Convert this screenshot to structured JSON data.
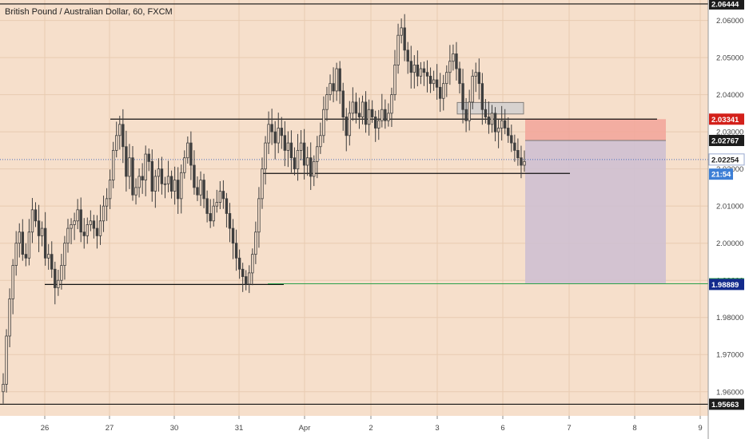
{
  "title": "British Pound / Australian Dollar, 60, FXCM",
  "colors": {
    "background": "#f6dfcb",
    "candle": "#3e3e3e",
    "grid": "#e8cbb1",
    "level_line": "#111111",
    "green_line": "#2aa14a",
    "stop_zone": "#f2a59a",
    "target_zone": "#cfc0d2",
    "price_axis_bg": "#ffffff",
    "badge_red": "#d3201a",
    "badge_black": "#1c1c1c",
    "badge_green": "#2aa14a",
    "badge_navy": "#132a8c",
    "badge_blue": "#3d7fd6"
  },
  "chart_data": {
    "type": "candlestick",
    "symbol": "British Pound / Australian Dollar",
    "interval": "60",
    "source": "FXCM",
    "x_labels": [
      "26",
      "27",
      "30",
      "31",
      "Apr",
      "2",
      "3",
      "6",
      "7",
      "8",
      "9"
    ],
    "y_ticks": [
      "2.06000",
      "2.05000",
      "2.04000",
      "2.03000",
      "2.02000",
      "2.01000",
      "2.00000",
      "1.99000",
      "1.98000",
      "1.97000",
      "1.96000"
    ],
    "y_range": [
      1.9535,
      2.0655
    ],
    "price_badges": [
      {
        "label": "2.06444",
        "value": 2.06444,
        "style": "black"
      },
      {
        "label": "2.03341",
        "value": 2.03341,
        "style": "red"
      },
      {
        "label": "2.02767",
        "value": 2.02767,
        "style": "black"
      },
      {
        "label": "2.02254",
        "value": 2.02254,
        "style": "white"
      },
      {
        "label": "21:54",
        "value": 2.0186,
        "style": "blue"
      },
      {
        "label": "1.98908",
        "value": 1.98908,
        "style": "green"
      },
      {
        "label": "1.98889",
        "value": 1.98889,
        "style": "navy"
      },
      {
        "label": "1.95663",
        "value": 1.95663,
        "style": "black"
      }
    ],
    "horizontal_levels": [
      2.03341,
      2.0188,
      1.98889
    ],
    "position": {
      "type": "short",
      "entry": 2.02767,
      "stop": 2.03341,
      "target": 1.98908,
      "current": 2.02254
    },
    "candles_close_path": [
      [
        1.962,
        1.975,
        1.985,
        1.994,
        2.0,
        2.003,
        1.997,
        1.996,
        2.003,
        2.009,
        2.006,
        2.002,
        2.004,
        1.996,
        1.997,
        1.993,
        1.988,
        1.99,
        1.994,
        2.0,
        2.004,
        2.005,
        2.006,
        2.009,
        2.003,
        2.002,
        2.005,
        2.006,
        2.004,
        2.002,
        2.006,
        2.01,
        2.012,
        2.017,
        2.025,
        2.029,
        2.032,
        2.026,
        2.018,
        2.023,
        2.013,
        2.015,
        2.018,
        2.017,
        2.024,
        2.022,
        2.014,
        2.018,
        2.02,
        2.016,
        2.016,
        2.018,
        2.014,
        2.017,
        2.012,
        2.019,
        2.023,
        2.027,
        2.021,
        2.015,
        2.013,
        2.017,
        2.012,
        2.008,
        2.006,
        2.01,
        2.011,
        2.014,
        2.012,
        2.008,
        2.004,
        2.0,
        1.996,
        1.993,
        1.991,
        1.989,
        1.992,
        1.997,
        2.003,
        2.012,
        2.02,
        2.027,
        2.032,
        2.03,
        2.027,
        2.031,
        2.029,
        2.025,
        2.027,
        2.023,
        2.02,
        2.025,
        2.027,
        2.021,
        2.023,
        2.018,
        2.022,
        2.026,
        2.029,
        2.036,
        2.04,
        2.043,
        2.041,
        2.047,
        2.041,
        2.034,
        2.029,
        2.035,
        2.038,
        2.035,
        2.034,
        2.038,
        2.032,
        2.036,
        2.034,
        2.031,
        2.033,
        2.036,
        2.033,
        2.035,
        2.04,
        2.048,
        2.056,
        2.058,
        2.052,
        2.049,
        2.046,
        2.048,
        2.045,
        2.047,
        2.046,
        2.045,
        2.043,
        2.044,
        2.042,
        2.039,
        2.043,
        2.046,
        2.049,
        2.051,
        2.047,
        2.043,
        2.036,
        2.033,
        2.038,
        2.045,
        2.046,
        2.043,
        2.036,
        2.034,
        2.032,
        2.035,
        2.03,
        2.031,
        2.033,
        2.031,
        2.029,
        2.027,
        2.025,
        2.023,
        2.021,
        2.022
      ]
    ]
  }
}
